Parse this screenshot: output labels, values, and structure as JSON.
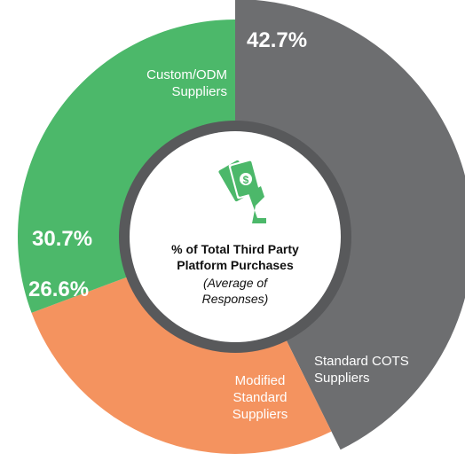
{
  "chart_data": {
    "type": "donut",
    "title": "% of Total Third Party Platform Purchases",
    "subtitle": "(Average of Responses)",
    "categories": [
      "Standard COTS Suppliers",
      "Modified Standard Suppliers",
      "Custom/ODM Suppliers"
    ],
    "values": [
      42.7,
      26.6,
      30.7
    ],
    "value_labels": [
      "42.7%",
      "26.6%",
      "30.7%"
    ],
    "colors": [
      "#6d6e70",
      "#f4935f",
      "#4cb86a"
    ],
    "exploded": [
      true,
      false,
      false
    ]
  }
}
